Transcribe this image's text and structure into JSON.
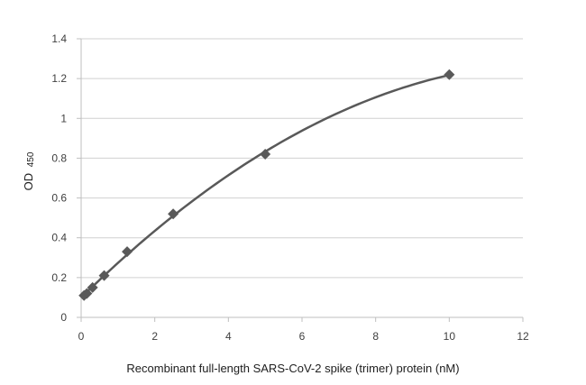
{
  "chart_data": {
    "type": "scatter",
    "title": "",
    "xlabel": "Recombinant full-length SARS-CoV-2 spike (trimer) protein (nM)",
    "ylabel": "OD",
    "ylabel_subscript": "450",
    "xlim": [
      0,
      12
    ],
    "ylim": [
      0,
      1.4
    ],
    "xticks": [
      "0",
      "2",
      "4",
      "6",
      "8",
      "10",
      "12"
    ],
    "yticks": [
      "0",
      "0.2",
      "0.4",
      "0.6",
      "0.8",
      "1",
      "1.2",
      "1.4"
    ],
    "grid": true,
    "trendline": "polynomial",
    "series": [
      {
        "marker": "diamond",
        "color": "#595959",
        "x": [
          0.078,
          0.156,
          0.31,
          0.625,
          1.25,
          2.5,
          5.0,
          10.0
        ],
        "y": [
          0.11,
          0.12,
          0.15,
          0.21,
          0.33,
          0.52,
          0.82,
          1.22
        ]
      }
    ]
  }
}
